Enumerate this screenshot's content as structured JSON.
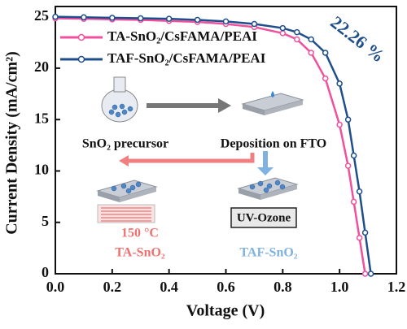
{
  "chart_data": {
    "type": "line",
    "x_label": "Voltage (V)",
    "y_label": "Current Density (mA/cm²)",
    "xlim": [
      0,
      1.2
    ],
    "ylim": [
      0,
      26
    ],
    "xticks": [
      {
        "value": 0,
        "label": "0.0"
      },
      0.2,
      0.4,
      0.6,
      0.8,
      {
        "value": 1,
        "label": "1.0"
      },
      1.2
    ],
    "yticks": [
      0,
      5,
      10,
      15,
      20,
      25
    ],
    "legend": "upper left",
    "series": [
      {
        "name": "TA-SnO₂/CsFAMA/PEAI",
        "color": "#f0509c",
        "x": [
          0,
          0.1,
          0.2,
          0.3,
          0.4,
          0.5,
          0.6,
          0.7,
          0.8,
          0.85,
          0.9,
          0.95,
          1.0,
          1.03,
          1.05,
          1.07,
          1.09
        ],
        "values": [
          24.85,
          24.8,
          24.75,
          24.7,
          24.6,
          24.5,
          24.3,
          24.0,
          23.4,
          22.8,
          21.5,
          19.0,
          14.5,
          10.5,
          7.0,
          3.5,
          0
        ]
      },
      {
        "name": "TAF-SnO₂/CsFAMA/PEAI",
        "color": "#1f4e8c",
        "x": [
          0,
          0.1,
          0.2,
          0.3,
          0.4,
          0.5,
          0.6,
          0.7,
          0.8,
          0.85,
          0.9,
          0.95,
          1.0,
          1.03,
          1.05,
          1.07,
          1.09,
          1.11
        ],
        "values": [
          25.0,
          24.95,
          24.9,
          24.85,
          24.8,
          24.7,
          24.55,
          24.3,
          23.9,
          23.5,
          22.8,
          21.5,
          18.5,
          15.0,
          11.5,
          8.0,
          4.0,
          0
        ]
      }
    ],
    "efficiency_label": "22.26 %",
    "inset": {
      "precursor": "SnO₂ precursor",
      "deposition": "Deposition on FTO",
      "temperature": "150 °C",
      "ta_label": "TA-SnO₂",
      "uv": "UV-Ozone",
      "taf_label": "TAF-SnO₂"
    }
  }
}
